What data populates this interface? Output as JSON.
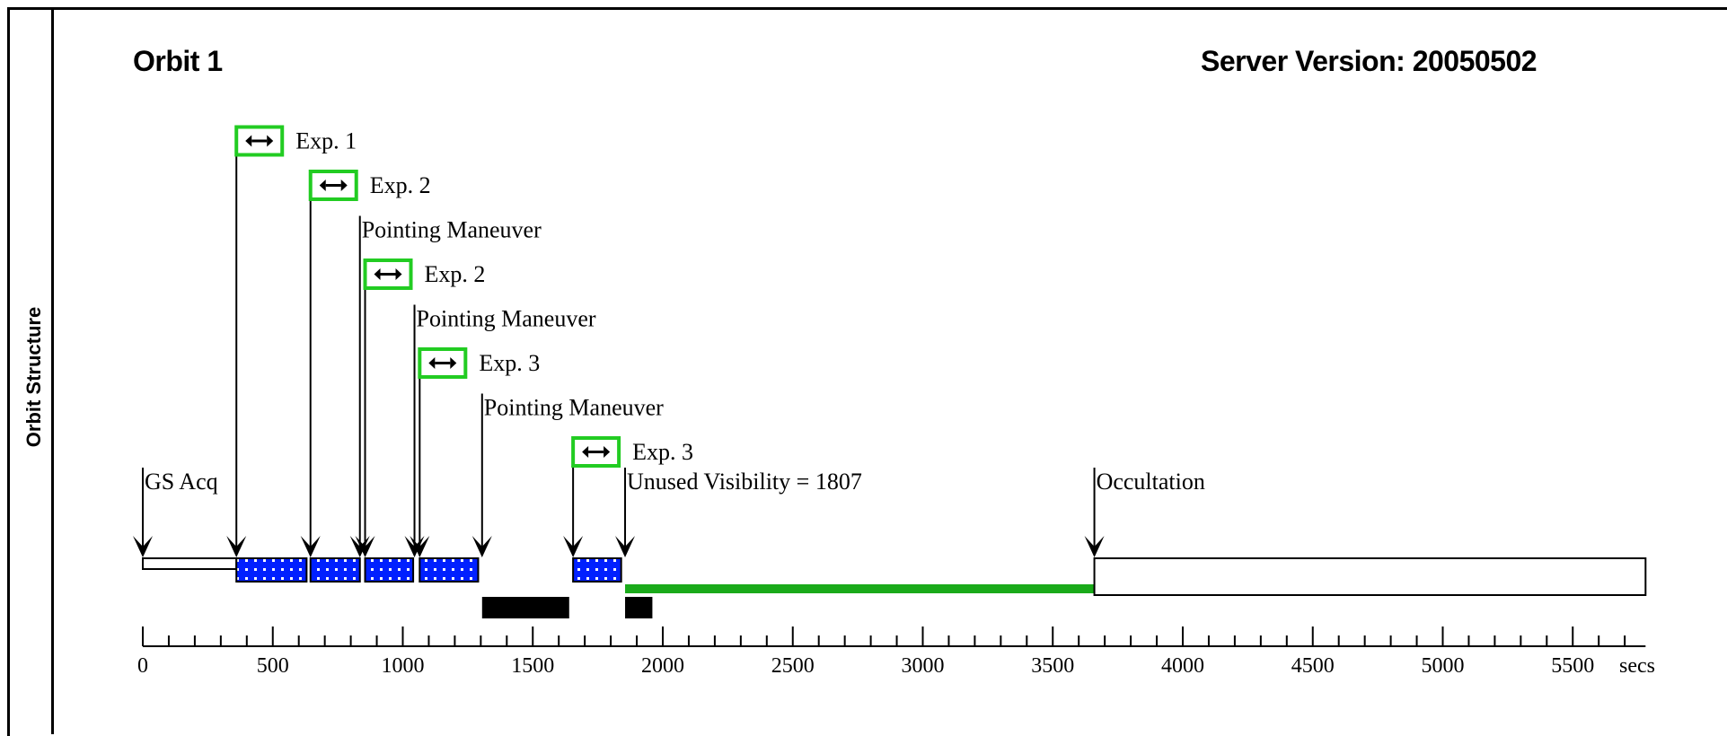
{
  "side_label": "Orbit Structure",
  "title": "Orbit 1",
  "server_version": "Server Version: 20050502",
  "colors": {
    "exposure_fill": "#0020ff",
    "exposure_dots": "#ffffff",
    "icon_border": "#22cc22",
    "unused_visibility": "#1aaa1a",
    "maneuver_bar": "#000000"
  },
  "axis": {
    "min": 0,
    "max": 5800,
    "unit": "secs",
    "ticks": [
      {
        "value": 0,
        "label": "0"
      },
      {
        "value": 500,
        "label": "500"
      },
      {
        "value": 1000,
        "label": "1000"
      },
      {
        "value": 1500,
        "label": "1500"
      },
      {
        "value": 2000,
        "label": "2000"
      },
      {
        "value": 2500,
        "label": "2500"
      },
      {
        "value": 3000,
        "label": "3000"
      },
      {
        "value": 3500,
        "label": "3500"
      },
      {
        "value": 4000,
        "label": "4000"
      },
      {
        "value": 4500,
        "label": "4500"
      },
      {
        "value": 5000,
        "label": "5000"
      },
      {
        "value": 5500,
        "label": "5500"
      }
    ],
    "minor_step": 100
  },
  "events": [
    {
      "label": "GS Acq",
      "time": 0,
      "icon": false
    },
    {
      "label": "Exp. 1",
      "time": 360,
      "icon": true
    },
    {
      "label": "Exp. 2",
      "time": 645,
      "icon": true
    },
    {
      "label": "Pointing Maneuver",
      "time": 835,
      "icon": false
    },
    {
      "label": "Exp. 2",
      "time": 855,
      "icon": true
    },
    {
      "label": "Pointing Maneuver",
      "time": 1045,
      "icon": false
    },
    {
      "label": "Exp. 3",
      "time": 1065,
      "icon": true
    },
    {
      "label": "Pointing Maneuver",
      "time": 1305,
      "icon": false
    },
    {
      "label": "Exp. 3",
      "time": 1655,
      "icon": true
    },
    {
      "label": "Unused Visibility = 1807",
      "time": 1855,
      "icon": false
    },
    {
      "label": "Occultation",
      "time": 3660,
      "icon": false
    }
  ],
  "segments": {
    "gs_acq": {
      "start": 0,
      "end": 360
    },
    "exposures": [
      {
        "start": 360,
        "end": 630
      },
      {
        "start": 645,
        "end": 835
      },
      {
        "start": 855,
        "end": 1040
      },
      {
        "start": 1065,
        "end": 1290
      },
      {
        "start": 1655,
        "end": 1840
      }
    ],
    "maneuvers": [
      {
        "start": 1305,
        "end": 1640
      },
      {
        "start": 1855,
        "end": 1960
      }
    ],
    "unused_visibility": {
      "start": 1855,
      "end": 3660
    },
    "occultation": {
      "start": 3660,
      "end": 5780
    }
  }
}
